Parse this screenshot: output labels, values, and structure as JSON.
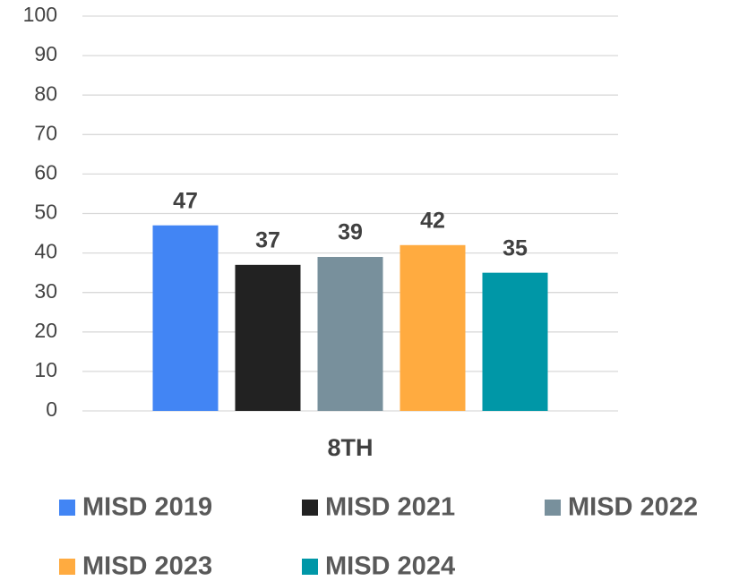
{
  "chart_data": {
    "type": "bar",
    "categories": [
      "8TH"
    ],
    "series": [
      {
        "name": "MISD 2019",
        "color": "#4285f4",
        "values": [
          47
        ]
      },
      {
        "name": "MISD 2021",
        "color": "#222222",
        "values": [
          37
        ]
      },
      {
        "name": "MISD 2022",
        "color": "#78909c",
        "values": [
          39
        ]
      },
      {
        "name": "MISD 2023",
        "color": "#ffab40",
        "values": [
          42
        ]
      },
      {
        "name": "MISD 2024",
        "color": "#0097a7",
        "values": [
          35
        ]
      }
    ],
    "ylim": [
      0,
      100
    ],
    "yticks": [
      0,
      10,
      20,
      30,
      40,
      50,
      60,
      70,
      80,
      90,
      100
    ],
    "grid": true,
    "legend": "bottom"
  }
}
